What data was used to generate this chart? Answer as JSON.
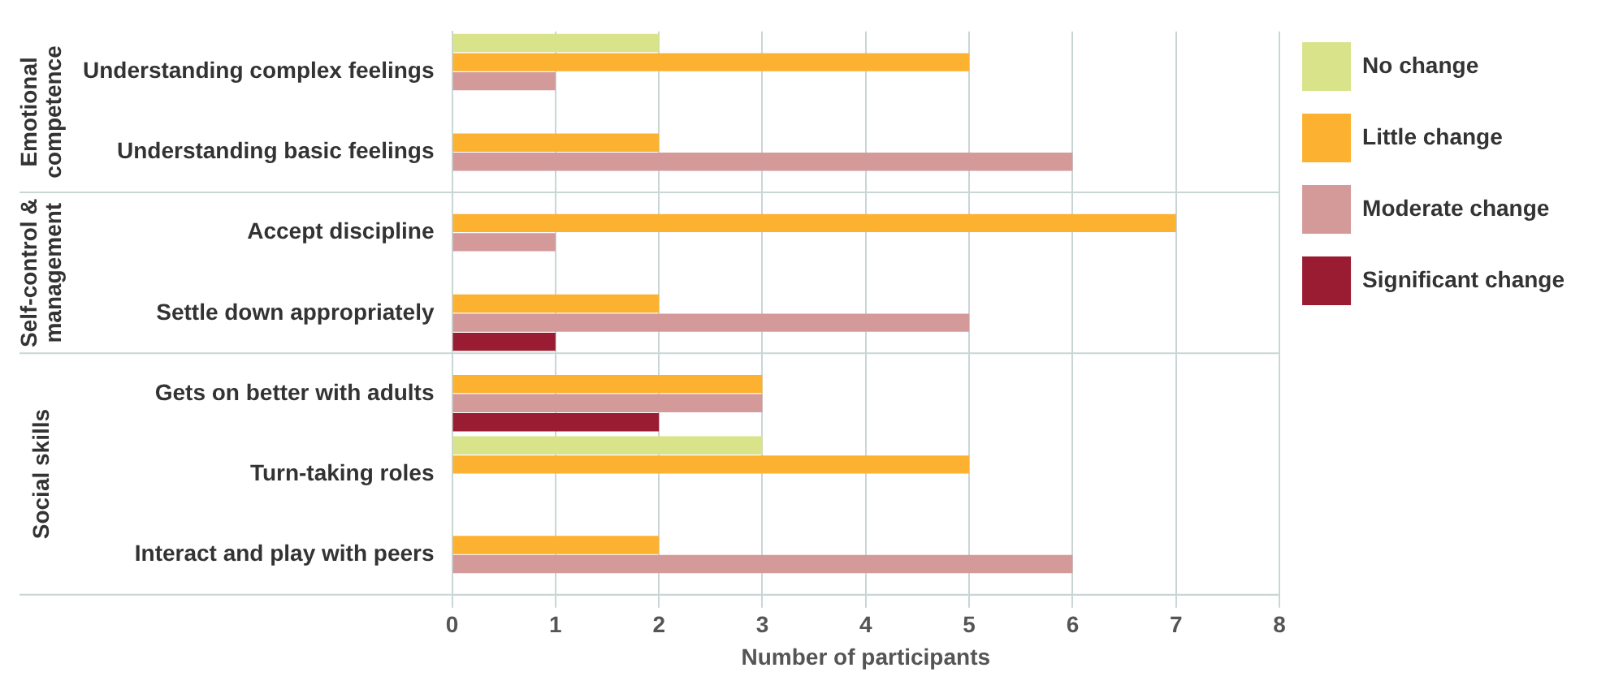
{
  "chart_data": {
    "type": "bar",
    "orientation": "horizontal",
    "xlabel": "Number of participants",
    "categories": [
      "Understanding complex feelings",
      "Understanding basic feelings",
      "Accept discipline",
      "Settle down appropriately",
      "Gets on better with adults",
      "Turn-taking roles",
      "Interact and play with peers"
    ],
    "series": [
      {
        "name": "No change",
        "color": "#d9e38a",
        "values": [
          2,
          null,
          null,
          null,
          null,
          3,
          null
        ]
      },
      {
        "name": "Little change",
        "color": "#fdb131",
        "values": [
          5,
          2,
          7,
          2,
          3,
          5,
          2
        ]
      },
      {
        "name": "Moderate change",
        "color": "#d49a9a",
        "values": [
          1,
          6,
          1,
          5,
          3,
          null,
          6
        ]
      },
      {
        "name": "Significant change",
        "color": "#9a1c32",
        "values": [
          null,
          null,
          null,
          1,
          2,
          null,
          null
        ]
      }
    ],
    "xlim": [
      0,
      8
    ],
    "xticks": [
      0,
      1,
      2,
      3,
      4,
      5,
      6,
      7,
      8
    ],
    "grid": "x",
    "legend": "right",
    "annotations": [
      "Emotional competence",
      "Self-control & management",
      "Social skills"
    ]
  }
}
